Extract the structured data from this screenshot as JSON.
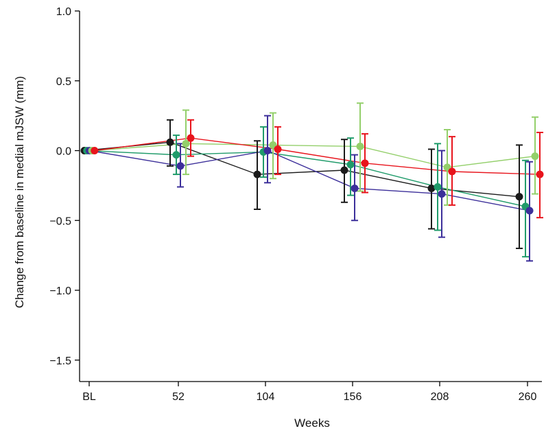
{
  "chart_data": {
    "type": "line",
    "title": "",
    "xlabel": "Weeks",
    "ylabel": "Change from baseline in medial mJSW (mm)",
    "x_categories": [
      "BL",
      "52",
      "104",
      "156",
      "208",
      "260"
    ],
    "yticks": [
      1.0,
      0.5,
      0.0,
      -0.5,
      -1.0,
      -1.5
    ],
    "ytick_labels": [
      "1.0",
      "0.5",
      "0.0",
      "−0.5",
      "−1.0",
      "−1.5"
    ],
    "ylim": [
      -1.65,
      1.0
    ],
    "grid": false,
    "legend": "none",
    "series": [
      {
        "color": "#1a1a1a",
        "values": [
          0.0,
          0.06,
          -0.17,
          -0.14,
          -0.27,
          -0.33
        ],
        "err_low": [
          0.0,
          -0.11,
          -0.42,
          -0.37,
          -0.56,
          -0.7
        ],
        "err_high": [
          0.0,
          0.22,
          0.07,
          0.08,
          0.01,
          0.04
        ]
      },
      {
        "color": "#1f9b6a",
        "values": [
          0.0,
          -0.03,
          -0.01,
          -0.1,
          -0.26,
          -0.4
        ],
        "err_low": [
          0.0,
          -0.17,
          -0.19,
          -0.32,
          -0.57,
          -0.76
        ],
        "err_high": [
          0.0,
          0.11,
          0.17,
          0.09,
          0.05,
          -0.07
        ]
      },
      {
        "color": "#3c2f9a",
        "values": [
          0.0,
          -0.11,
          0.0,
          -0.27,
          -0.31,
          -0.43
        ],
        "err_low": [
          0.0,
          -0.26,
          -0.23,
          -0.5,
          -0.62,
          -0.79
        ],
        "err_high": [
          0.0,
          0.05,
          0.25,
          -0.03,
          0.0,
          -0.08
        ]
      },
      {
        "color": "#93cf6a",
        "values": [
          0.0,
          0.05,
          0.04,
          0.03,
          -0.12,
          -0.04
        ],
        "err_low": [
          0.0,
          -0.17,
          -0.2,
          -0.29,
          -0.39,
          -0.31
        ],
        "err_high": [
          0.0,
          0.29,
          0.27,
          0.34,
          0.15,
          0.24
        ]
      },
      {
        "color": "#e8141c",
        "values": [
          0.0,
          0.09,
          0.01,
          -0.09,
          -0.15,
          -0.17
        ],
        "err_low": [
          0.0,
          -0.04,
          -0.17,
          -0.3,
          -0.39,
          -0.48
        ],
        "err_high": [
          0.0,
          0.22,
          0.17,
          0.12,
          0.1,
          0.13
        ]
      }
    ]
  }
}
